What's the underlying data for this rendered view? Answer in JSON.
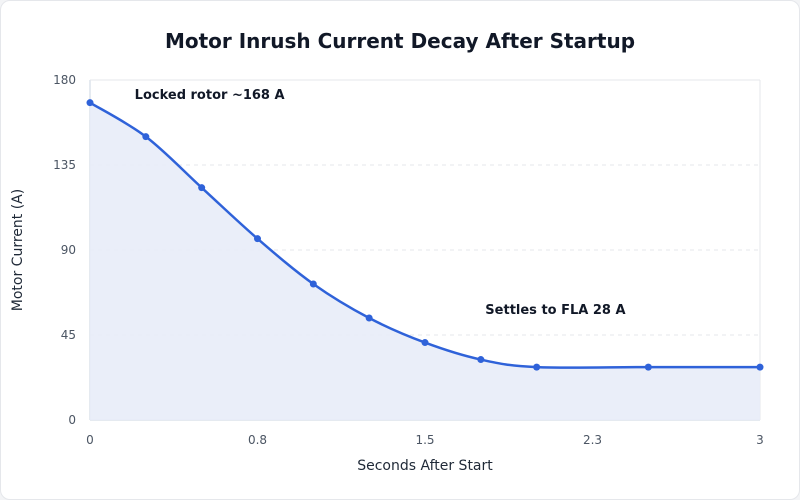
{
  "chart_data": {
    "type": "area",
    "title": "Motor Inrush Current Decay After Startup",
    "xlabel": "Seconds After Start",
    "ylabel": "Motor Current (A)",
    "xlim": [
      0,
      3
    ],
    "ylim": [
      0,
      180
    ],
    "x_ticks": [
      "0",
      "0.8",
      "1.5",
      "2.3",
      "3"
    ],
    "x_tick_values": [
      0,
      0.75,
      1.5,
      2.25,
      3
    ],
    "y_ticks": [
      "0",
      "45",
      "90",
      "135",
      "180"
    ],
    "y_tick_values": [
      0,
      45,
      90,
      135,
      180
    ],
    "grid": true,
    "series": [
      {
        "x": [
          0,
          0.25,
          0.5,
          0.75,
          1.0,
          1.25,
          1.5,
          1.75,
          2.0,
          2.5,
          3.0
        ],
        "y": [
          168,
          150,
          123,
          96,
          72,
          54,
          41,
          32,
          28,
          28,
          28
        ]
      }
    ],
    "annotations": [
      {
        "text": "Locked rotor ~168 A",
        "x": 0.2,
        "y": 170
      },
      {
        "text": "Settles to FLA 28 A",
        "x": 1.77,
        "y": 56
      }
    ],
    "colors": {
      "line": "#2f62d9",
      "fill": "#e8ecf8",
      "grid": "#e5e7eb",
      "axis": "#cbd5e1"
    }
  }
}
